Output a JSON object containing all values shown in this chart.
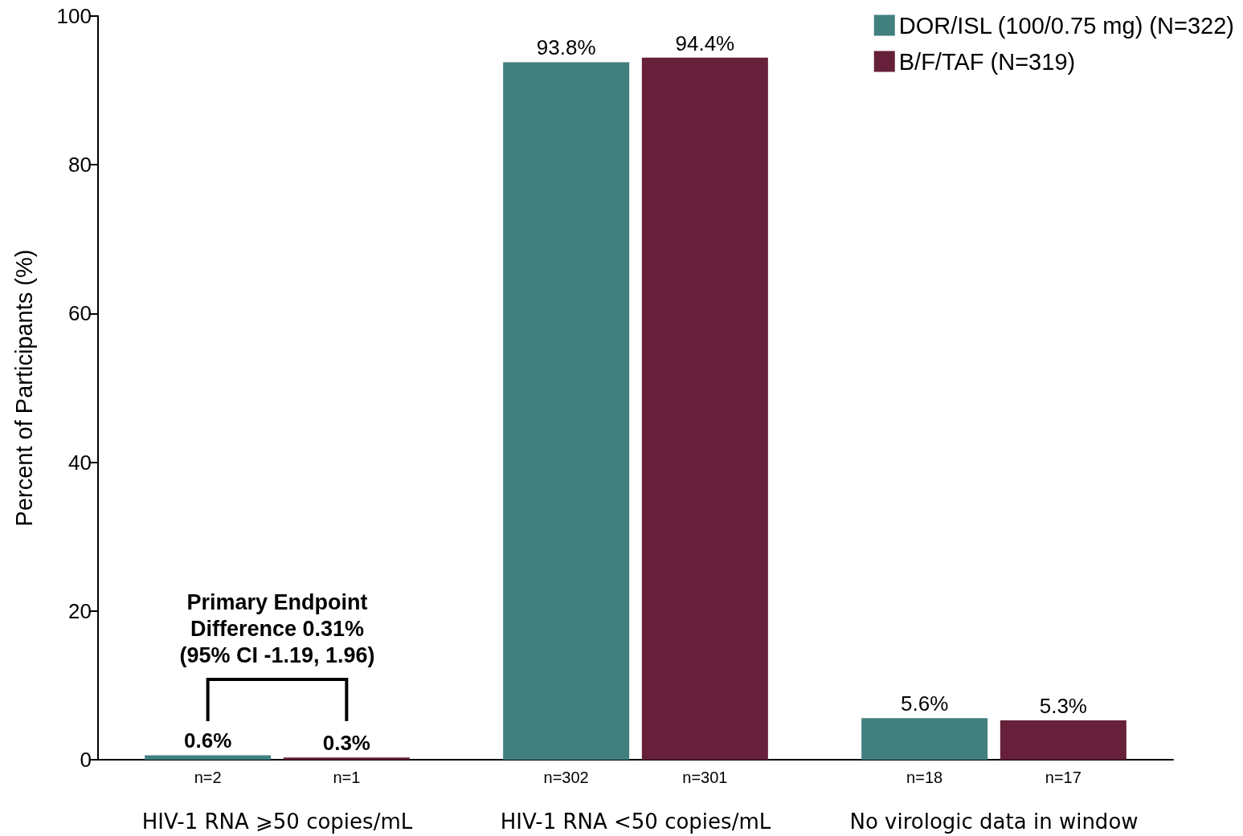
{
  "chart_data": {
    "type": "bar",
    "ylabel": "Percent of Participants (%)",
    "categories": [
      "HIV-1 RNA ⩾50 copies/mL",
      "HIV-1 RNA <50 copies/mL",
      "No virologic data in window"
    ],
    "series": [
      {
        "name": "DOR/ISL (100/0.75 mg) (N=322)",
        "color": "#427f7f",
        "values": [
          0.6,
          93.8,
          5.6
        ],
        "value_labels": [
          "0.6%",
          "93.8%",
          "5.6%"
        ]
      },
      {
        "name": "B/F/TAF (N=319)",
        "color": "#66203a",
        "values": [
          0.3,
          94.4,
          5.3
        ],
        "value_labels": [
          "0.3%",
          "94.4%",
          "5.3%"
        ]
      }
    ],
    "ylim": [
      0,
      100
    ],
    "yticks": [
      0,
      20,
      40,
      60,
      80,
      100
    ],
    "legend": "top right",
    "grid": false,
    "annotations": [
      "Primary Endpoint\nDifference 0.31%\n(95% CI -1.19, 1.96)",
      "n=2",
      "n=1",
      "n=302",
      "n=301",
      "n=18",
      "n=17"
    ]
  }
}
